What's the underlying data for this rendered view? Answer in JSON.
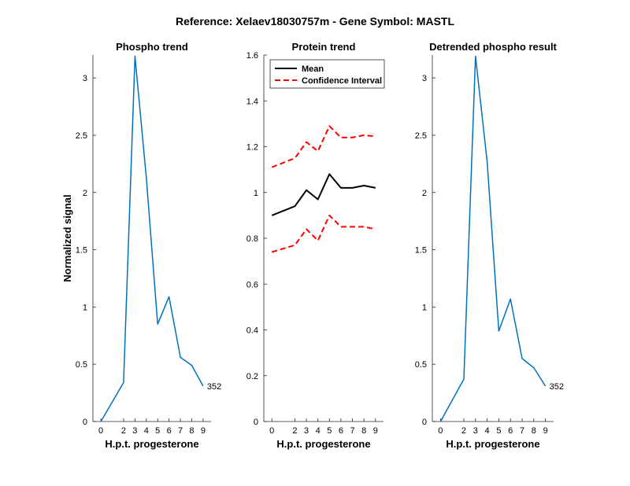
{
  "figure": {
    "title": "Reference:  Xelaev18030757m - Gene Symbol:  MASTL"
  },
  "chart_data": [
    {
      "type": "line",
      "title": "Phospho trend",
      "xlabel": "H.p.t. progesterone",
      "ylabel": "Normalized signal",
      "x": [
        0,
        2,
        3,
        4,
        5,
        6,
        7,
        8,
        9
      ],
      "xticks": [
        "0",
        "2",
        "3",
        "4",
        "5",
        "6",
        "7",
        "8",
        "9"
      ],
      "ylim": [
        0,
        3.2
      ],
      "yticks": [
        "0",
        "0.5",
        "1",
        "1.5",
        "2",
        "2.5",
        "3"
      ],
      "series": [
        {
          "values": [
            0,
            0.34,
            3.19,
            2.13,
            0.85,
            1.09,
            0.56,
            0.49,
            0.31
          ],
          "color": "#0072BD"
        }
      ],
      "annotations": [
        {
          "text": "352",
          "x": 9,
          "y": 0.31
        }
      ],
      "grid": false
    },
    {
      "type": "line",
      "title": "Protein trend",
      "xlabel": "H.p.t. progesterone",
      "ylabel": "",
      "x": [
        0,
        2,
        3,
        4,
        5,
        6,
        7,
        8,
        9
      ],
      "xticks": [
        "0",
        "2",
        "3",
        "4",
        "5",
        "6",
        "7",
        "8",
        "9"
      ],
      "ylim": [
        0,
        1.6
      ],
      "yticks": [
        "0",
        "0.2",
        "0.4",
        "0.6",
        "0.8",
        "1",
        "1.2",
        "1.4",
        "1.6"
      ],
      "series": [
        {
          "name": "Mean",
          "values": [
            0.9,
            0.94,
            1.01,
            0.97,
            1.08,
            1.02,
            1.02,
            1.03,
            1.02
          ],
          "color": "#000000",
          "style": "solid"
        },
        {
          "name": "Confidence Interval",
          "values": [
            1.11,
            1.15,
            1.22,
            1.18,
            1.29,
            1.24,
            1.24,
            1.25,
            1.245
          ],
          "color": "#FF0000",
          "style": "dashed"
        },
        {
          "name": "",
          "values": [
            0.74,
            0.77,
            0.84,
            0.79,
            0.9,
            0.85,
            0.85,
            0.85,
            0.84
          ],
          "color": "#FF0000",
          "style": "dashed"
        }
      ],
      "legend": {
        "placement": "top-left",
        "entries": [
          {
            "label": "Mean",
            "color": "#000000",
            "style": "solid"
          },
          {
            "label": "Confidence Interval",
            "color": "#FF0000",
            "style": "dashed"
          }
        ]
      },
      "grid": false
    },
    {
      "type": "line",
      "title": "Detrended phospho result",
      "xlabel": "H.p.t. progesterone",
      "ylabel": "",
      "x": [
        0,
        2,
        3,
        4,
        5,
        6,
        7,
        8,
        9
      ],
      "xticks": [
        "0",
        "2",
        "3",
        "4",
        "5",
        "6",
        "7",
        "8",
        "9"
      ],
      "ylim": [
        0,
        3.2
      ],
      "yticks": [
        "0",
        "0.5",
        "1",
        "1.5",
        "2",
        "2.5",
        "3"
      ],
      "series": [
        {
          "values": [
            0,
            0.37,
            3.19,
            2.27,
            0.79,
            1.07,
            0.55,
            0.47,
            0.31
          ],
          "color": "#0072BD"
        }
      ],
      "annotations": [
        {
          "text": "352",
          "x": 9,
          "y": 0.31
        }
      ],
      "grid": false
    }
  ]
}
